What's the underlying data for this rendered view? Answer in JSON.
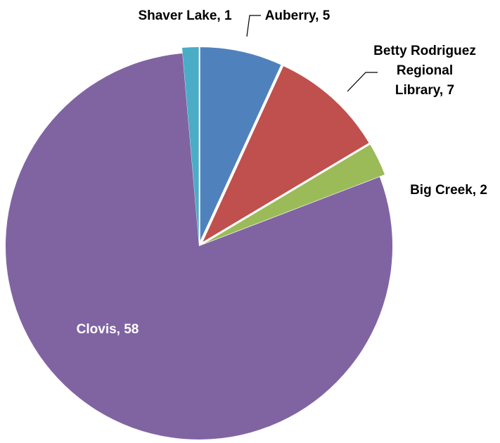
{
  "chart_data": {
    "type": "pie",
    "title": "",
    "categories": [
      "Auberry",
      "Betty Rodriguez Regional Library",
      "Big Creek",
      "Clovis",
      "Shaver Lake"
    ],
    "values": [
      5,
      7,
      2,
      58,
      1
    ],
    "colors": [
      "#4F81BD",
      "#C0504D",
      "#9BBB59",
      "#8064A2",
      "#4BACC6"
    ],
    "data_labels": [
      [
        "Auberry, 5"
      ],
      [
        "Betty Rodriguez",
        "Regional",
        "Library, 7"
      ],
      [
        "Big Creek, 2"
      ],
      [
        "Clovis, 58"
      ],
      [
        "Shaver Lake, 1"
      ]
    ],
    "exploded": true,
    "start_angle": "12 o'clock",
    "direction": "clockwise",
    "legend": "none"
  }
}
